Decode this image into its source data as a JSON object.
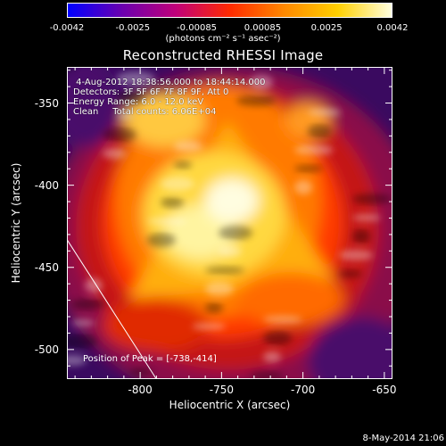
{
  "colorbar": {
    "ticks": [
      "-0.0042",
      "-0.0025",
      "-0.00085",
      "0.00085",
      "0.0025",
      "0.0042"
    ],
    "unit": "(photons cm⁻² s⁻¹ asec⁻²)",
    "stops": [
      "#0000ff",
      "#6a00b0",
      "#c0007a",
      "#ff2a00",
      "#ff8800",
      "#ffd000",
      "#ffffe0"
    ]
  },
  "title": "Reconstructed RHESSI Image",
  "info": {
    "line1": " 4-Aug-2012 18:38:56.000 to 18:44:14.000",
    "line2": "Detectors: 3F 5F 6F 7F 8F 9F, Att 0",
    "line3": "Energy Range: 6.0 - 12.0 keV",
    "line4": "Clean     Total counts: 6.06E+04"
  },
  "peak_text": "Position of Peak = [-738,-414]",
  "datestamp": "8-May-2014 21:06",
  "chart_data": {
    "type": "heatmap",
    "title": "Reconstructed RHESSI Image",
    "xlabel": "Heliocentric X (arcsec)",
    "ylabel": "Heliocentric Y (arcsec)",
    "xlim": [
      -845,
      -645
    ],
    "ylim": [
      -518,
      -328
    ],
    "x_ticks": [
      -800,
      -750,
      -700,
      -650
    ],
    "y_ticks": [
      -350,
      -400,
      -450,
      -500
    ],
    "x_tick_labels": [
      "-800",
      "-750",
      "-700",
      "-650"
    ],
    "y_tick_labels": [
      "-350",
      "-400",
      "-450",
      "-500"
    ],
    "peak": [
      -738,
      -414
    ],
    "limb_line": [
      [
        -845,
        -433
      ],
      [
        -790,
        -518
      ]
    ],
    "colorbar_range": [
      -0.0042,
      0.0042
    ]
  }
}
